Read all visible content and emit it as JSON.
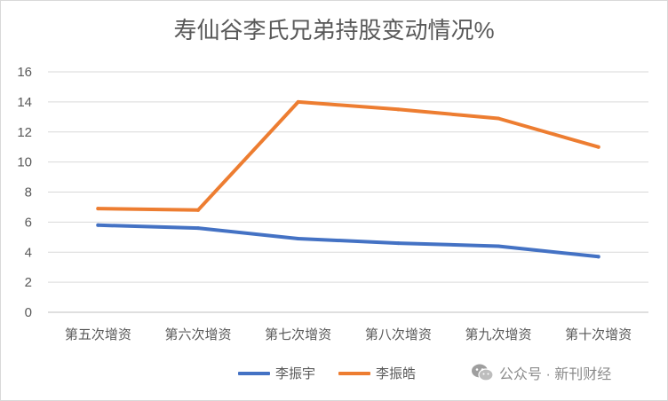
{
  "chart_data": {
    "type": "line",
    "title": "寿仙谷李氏兄弟持股变动情况%",
    "categories": [
      "第五次增资",
      "第六次增资",
      "第七次增资",
      "第八次增资",
      "第九次增资",
      "第十次增资"
    ],
    "ylim": [
      0,
      16
    ],
    "yticks": [
      0,
      2,
      4,
      6,
      8,
      10,
      12,
      14,
      16
    ],
    "grid": true,
    "legend_position": "bottom",
    "series": [
      {
        "name": "李振宇",
        "color": "#4472c4",
        "values": [
          5.8,
          5.6,
          4.9,
          4.6,
          4.4,
          3.7
        ]
      },
      {
        "name": "李振皓",
        "color": "#ed7d31",
        "values": [
          6.9,
          6.8,
          14.0,
          13.5,
          12.9,
          11.0
        ]
      }
    ]
  },
  "watermark": {
    "text": "公众号 · 新刊财经",
    "icon": "wechat-icon"
  }
}
